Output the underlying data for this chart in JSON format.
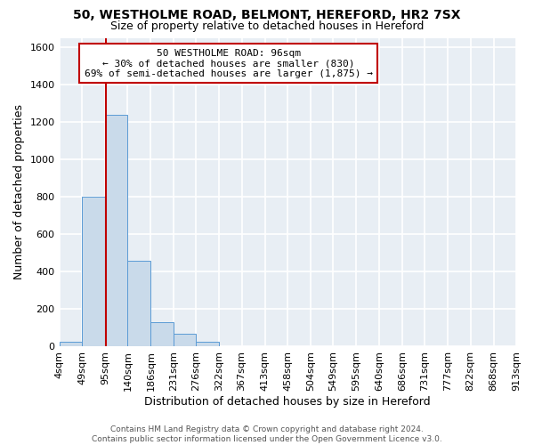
{
  "title_line1": "50, WESTHOLME ROAD, BELMONT, HEREFORD, HR2 7SX",
  "title_line2": "Size of property relative to detached houses in Hereford",
  "xlabel": "Distribution of detached houses by size in Hereford",
  "ylabel": "Number of detached properties",
  "bar_edges": [
    4,
    49,
    95,
    140,
    186,
    231,
    276,
    322,
    367,
    413,
    458,
    504,
    549,
    595,
    640,
    686,
    731,
    777,
    822,
    868,
    913
  ],
  "bar_heights": [
    25,
    800,
    1240,
    455,
    130,
    65,
    22,
    0,
    0,
    0,
    0,
    0,
    0,
    0,
    0,
    0,
    0,
    0,
    0,
    0
  ],
  "tick_labels": [
    "4sqm",
    "49sqm",
    "95sqm",
    "140sqm",
    "186sqm",
    "231sqm",
    "276sqm",
    "322sqm",
    "367sqm",
    "413sqm",
    "458sqm",
    "504sqm",
    "549sqm",
    "595sqm",
    "640sqm",
    "686sqm",
    "731sqm",
    "777sqm",
    "822sqm",
    "868sqm",
    "913sqm"
  ],
  "bar_color": "#c9daea",
  "bar_edge_color": "#5b9bd5",
  "vline_x": 96,
  "vline_color": "#c00000",
  "ylim": [
    0,
    1650
  ],
  "yticks": [
    0,
    200,
    400,
    600,
    800,
    1000,
    1200,
    1400,
    1600
  ],
  "annotation_title": "50 WESTHOLME ROAD: 96sqm",
  "annotation_line1": "← 30% of detached houses are smaller (830)",
  "annotation_line2": "69% of semi-detached houses are larger (1,875) →",
  "annotation_box_color": "#c00000",
  "footer_line1": "Contains HM Land Registry data © Crown copyright and database right 2024.",
  "footer_line2": "Contains public sector information licensed under the Open Government Licence v3.0.",
  "background_color": "#ffffff",
  "plot_bg_color": "#e8eef4",
  "grid_color": "#ffffff"
}
